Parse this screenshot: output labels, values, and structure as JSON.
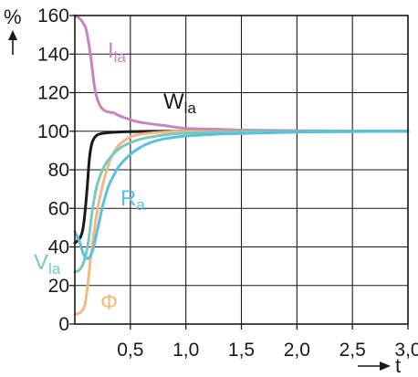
{
  "chart_data": {
    "type": "line",
    "title": "",
    "xlabel": "t",
    "ylabel": "%",
    "xlim": [
      0,
      3.0
    ],
    "ylim": [
      0,
      160
    ],
    "xticks": [
      "0,5",
      "1,0",
      "1,5",
      "2,0",
      "2,5",
      "3,0"
    ],
    "xtick_values": [
      0.5,
      1.0,
      1.5,
      2.0,
      2.5,
      3.0
    ],
    "yticks": [
      "0",
      "20",
      "40",
      "60",
      "80",
      "100",
      "120",
      "140",
      "160"
    ],
    "ytick_values": [
      0,
      20,
      40,
      60,
      80,
      100,
      120,
      140,
      160
    ],
    "grid": true,
    "series": [
      {
        "main": "I",
        "sub": "la",
        "color": "#c586c0",
        "x": [
          0,
          0.05,
          0.1,
          0.14,
          0.18,
          0.22,
          0.26,
          0.3,
          0.35,
          0.4,
          0.5,
          0.6,
          0.8,
          1.0,
          1.3,
          1.6,
          2.0,
          2.5,
          3.0
        ],
        "y": [
          160,
          158,
          153,
          140,
          122,
          114,
          111,
          110,
          109.5,
          108,
          106,
          104.5,
          103,
          101.5,
          101,
          100.5,
          100.3,
          100.1,
          100
        ]
      },
      {
        "main": "W",
        "sub": "la",
        "color": "#1a1a1a",
        "x": [
          0,
          0.05,
          0.08,
          0.11,
          0.13,
          0.15,
          0.17,
          0.2,
          0.24,
          0.3,
          0.4,
          0.6,
          1.0,
          2.0,
          3.0
        ],
        "y": [
          42,
          45,
          52,
          70,
          85,
          93,
          96,
          98,
          98.8,
          99.2,
          99.6,
          99.9,
          100,
          100,
          100
        ]
      },
      {
        "main": "Φ",
        "sub": "",
        "color": "#f4b982",
        "x": [
          0,
          0.03,
          0.06,
          0.09,
          0.12,
          0.15,
          0.2,
          0.25,
          0.3,
          0.35,
          0.4,
          0.5,
          0.6,
          0.8,
          1.0,
          1.5,
          3.0
        ],
        "y": [
          5,
          5.5,
          6.5,
          10,
          22,
          38,
          58,
          72,
          82,
          89,
          93,
          97,
          98.5,
          99.5,
          100,
          100,
          100
        ]
      },
      {
        "main": "V",
        "sub": "la",
        "color": "#7bc8c0",
        "x": [
          0,
          0.04,
          0.08,
          0.12,
          0.16,
          0.2,
          0.25,
          0.3,
          0.4,
          0.5,
          0.6,
          0.8,
          1.0,
          1.5,
          2.0,
          3.0
        ],
        "y": [
          27,
          28,
          32,
          42,
          60,
          72,
          80,
          85,
          91,
          94,
          96,
          98,
          99,
          99.7,
          100,
          100
        ]
      },
      {
        "main": "R",
        "sub": "a",
        "color": "#5bbfe0",
        "x": [
          0,
          0.04,
          0.08,
          0.12,
          0.16,
          0.2,
          0.25,
          0.3,
          0.35,
          0.4,
          0.5,
          0.6,
          0.7,
          0.8,
          1.0,
          1.3,
          1.6,
          2.0,
          2.5,
          3.0
        ],
        "y": [
          48,
          43,
          36,
          34,
          38,
          48,
          61,
          71,
          77,
          82,
          88,
          92,
          94.5,
          96,
          97.5,
          98.5,
          99,
          99.5,
          99.8,
          100
        ]
      }
    ]
  }
}
